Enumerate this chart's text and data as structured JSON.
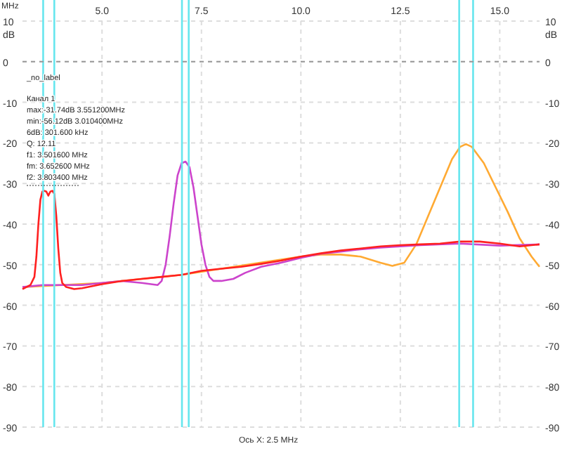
{
  "chart_data": {
    "type": "line",
    "xlabel": "MHz",
    "xlim": [
      3,
      16
    ],
    "ylim": [
      -90,
      10
    ],
    "y2lim": [
      -90,
      10
    ],
    "xticks": [
      {
        "value": 5,
        "label": "5.0"
      },
      {
        "value": 7.5,
        "label": "7.5"
      },
      {
        "value": 10,
        "label": "10.0"
      },
      {
        "value": 12.5,
        "label": "12.5"
      },
      {
        "value": 15,
        "label": "15.0"
      }
    ],
    "yticks": [
      10,
      0,
      -10,
      -20,
      -30,
      -40,
      -50,
      -60,
      -70,
      -80,
      -90
    ],
    "y2ticks": [
      10,
      0,
      -10,
      -20,
      -30,
      -40,
      -50,
      -60,
      -70,
      -80,
      -90
    ],
    "grid": true,
    "line_style": "solid",
    "series": [
      {
        "color": "#ffaa33",
        "x": [
          3,
          4,
          5,
          6,
          7,
          8,
          9,
          10,
          10.5,
          11,
          11.5,
          12,
          12.3,
          12.6,
          12.9,
          13.2,
          13.5,
          13.8,
          14.0,
          14.15,
          14.3,
          14.6,
          14.9,
          15.2,
          15.5,
          15.8,
          16
        ],
        "values": [
          -55.5,
          -55,
          -54.5,
          -53.5,
          -52.5,
          -51,
          -49.5,
          -48,
          -47.5,
          -47.5,
          -48,
          -49.5,
          -50.3,
          -49.5,
          -45,
          -38,
          -31,
          -24,
          -21,
          -20.3,
          -21,
          -25,
          -31,
          -37,
          -43.5,
          -48,
          -50.5
        ]
      },
      {
        "color": "#cc44cc",
        "x": [
          3,
          3.5,
          4,
          4.5,
          5,
          5.5,
          6,
          6.4,
          6.5,
          6.6,
          6.7,
          6.8,
          6.9,
          7.0,
          7.1,
          7.2,
          7.3,
          7.4,
          7.5,
          7.6,
          7.7,
          7.8,
          8.0,
          8.3,
          8.6,
          9,
          9.5,
          10,
          10.5,
          11,
          11.5,
          12,
          13,
          14,
          15,
          16
        ],
        "values": [
          -55.5,
          -55,
          -55,
          -55,
          -54.5,
          -54,
          -54.5,
          -55,
          -54,
          -50,
          -43,
          -35,
          -28,
          -25,
          -24.6,
          -26,
          -31,
          -38,
          -45,
          -50,
          -53,
          -54,
          -54,
          -53.5,
          -52,
          -50.5,
          -49.5,
          -48.3,
          -47.3,
          -46.8,
          -46.2,
          -45.8,
          -45.2,
          -44.8,
          -45.3,
          -45
        ]
      },
      {
        "color": "#ff2020",
        "x": [
          3,
          3.1,
          3.2,
          3.3,
          3.35,
          3.4,
          3.45,
          3.5,
          3.55,
          3.6,
          3.65,
          3.7,
          3.75,
          3.8,
          3.85,
          3.9,
          3.95,
          4.0,
          4.1,
          4.3,
          4.5,
          5,
          5.5,
          6,
          6.5,
          7,
          7.5,
          8,
          8.5,
          9,
          9.5,
          10,
          10.5,
          11,
          11.5,
          12,
          12.5,
          13,
          13.5,
          14,
          14.5,
          15,
          15.5,
          16
        ],
        "values": [
          -56,
          -55.5,
          -55,
          -53,
          -48,
          -40,
          -34,
          -32,
          -31.8,
          -32,
          -33,
          -32,
          -31.8,
          -32.5,
          -38,
          -46,
          -52,
          -54.5,
          -55.5,
          -56,
          -55.8,
          -54.8,
          -54,
          -53.5,
          -53,
          -52.5,
          -51.5,
          -51,
          -50.5,
          -49.8,
          -49,
          -48,
          -47.2,
          -46.5,
          -46,
          -45.5,
          -45.2,
          -45,
          -44.8,
          -44.3,
          -44.3,
          -44.8,
          -45.5,
          -45
        ]
      }
    ],
    "ref_lines": [
      {
        "axis": "x",
        "value": 3.52,
        "color": "#66e6ee"
      },
      {
        "axis": "x",
        "value": 3.8,
        "color": "#66e6ee"
      },
      {
        "axis": "x",
        "value": 7.01,
        "color": "#66e6ee"
      },
      {
        "axis": "x",
        "value": 7.18,
        "color": "#66e6ee"
      },
      {
        "axis": "x",
        "value": 13.98,
        "color": "#66e6ee"
      },
      {
        "axis": "x",
        "value": 14.33,
        "color": "#66e6ee"
      },
      {
        "axis": "y",
        "value": 0,
        "color": "#999999",
        "line_style": "dashed"
      }
    ],
    "annotations": [
      "_no_label",
      "Канал 1",
      "max:-31.74dB 3.551200MHz",
      "min:-56.12dB 3.010400MHz",
      "6dB: 301.600 kHz",
      "Q: 12.11",
      "f1: 3.501600 MHz",
      "fm: 3.652600 MHz",
      "f2: 3.803400 MHz",
      "dB",
      "dB",
      "Ось X: 2.5 MHz"
    ]
  }
}
